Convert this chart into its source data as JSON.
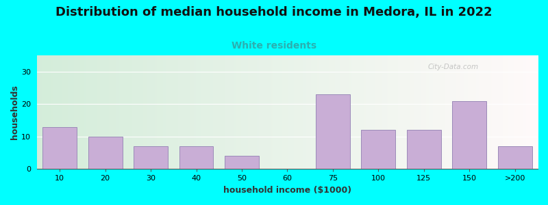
{
  "title": "Distribution of median household income in Medora, IL in 2022",
  "subtitle": "White residents",
  "xlabel": "household income ($1000)",
  "ylabel": "households",
  "background_color": "#00FFFF",
  "bar_color": "#c9aed6",
  "bar_edge_color": "#9b8ab8",
  "categories": [
    "10",
    "20",
    "30",
    "40",
    "50",
    "60",
    "75",
    "100",
    "125",
    "150",
    ">200"
  ],
  "values": [
    13,
    10,
    7,
    7,
    4,
    0,
    23,
    12,
    12,
    21,
    7
  ],
  "ylim": [
    0,
    35
  ],
  "yticks": [
    0,
    10,
    20,
    30
  ],
  "title_fontsize": 13,
  "subtitle_fontsize": 10,
  "subtitle_color": "#2ab0b0",
  "axis_label_fontsize": 9,
  "tick_fontsize": 8,
  "watermark": "City-Data.com"
}
